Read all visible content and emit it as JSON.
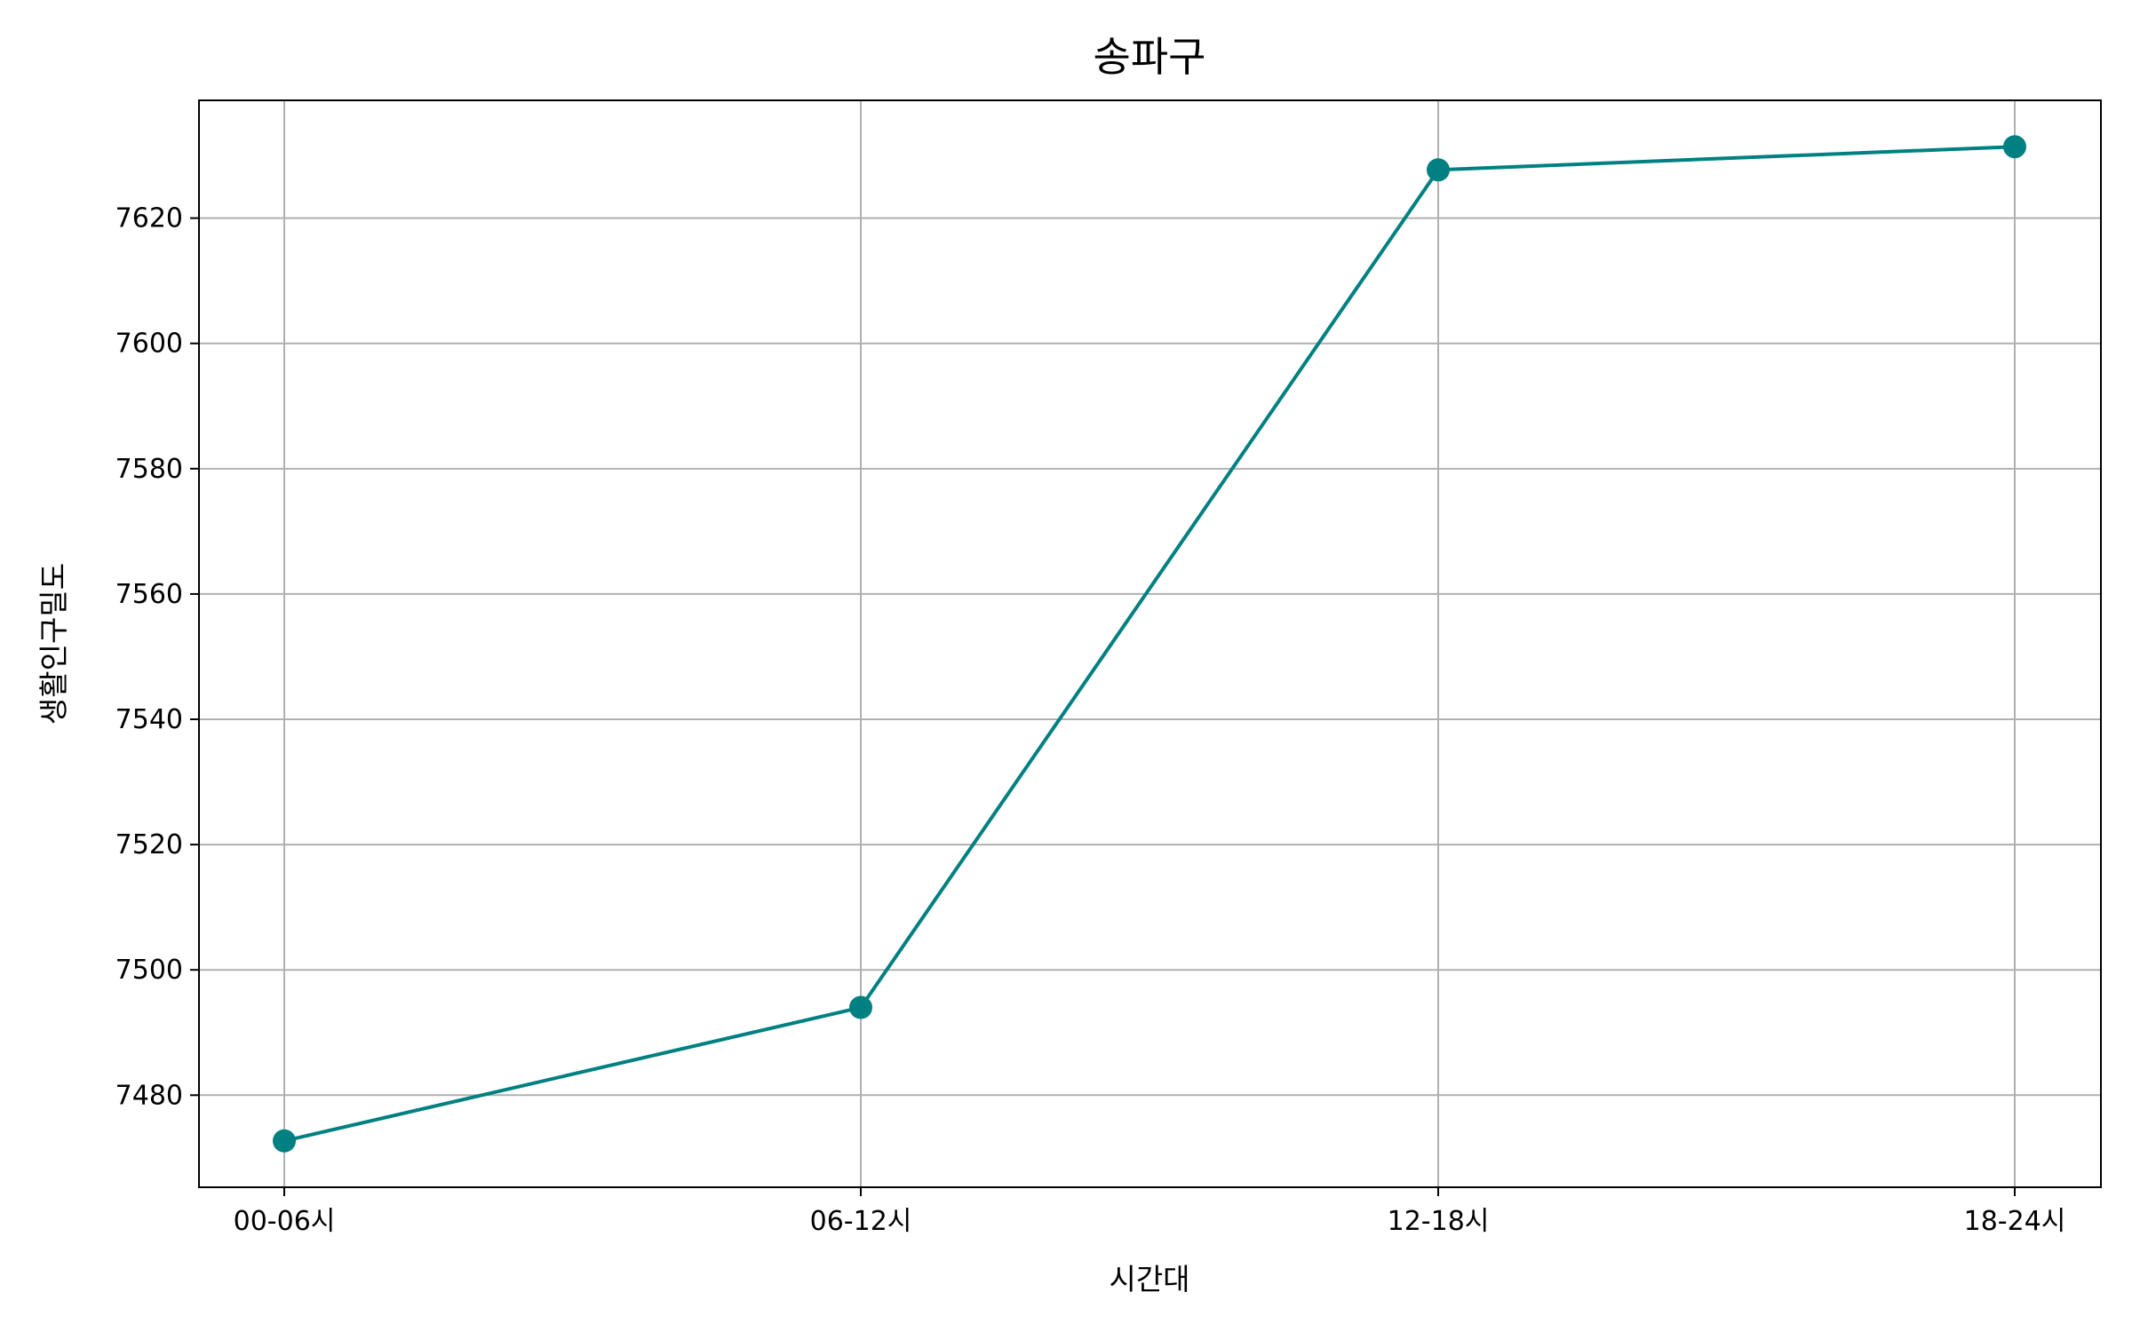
{
  "chart_data": {
    "type": "line",
    "title": "송파구",
    "xlabel": "시간대",
    "ylabel": "생활인구밀도",
    "categories": [
      "00-06시",
      "06-12시",
      "12-18시",
      "18-24시"
    ],
    "series": [
      {
        "values": [
          7472.7,
          7494.0,
          7627.7,
          7631.4
        ],
        "color": "#008080",
        "marker": "circle"
      }
    ],
    "yticks": [
      7480,
      7500,
      7520,
      7540,
      7560,
      7580,
      7600,
      7620
    ],
    "ylim": [
      7465.3,
      7638.8
    ],
    "grid": true,
    "legend": "none"
  }
}
